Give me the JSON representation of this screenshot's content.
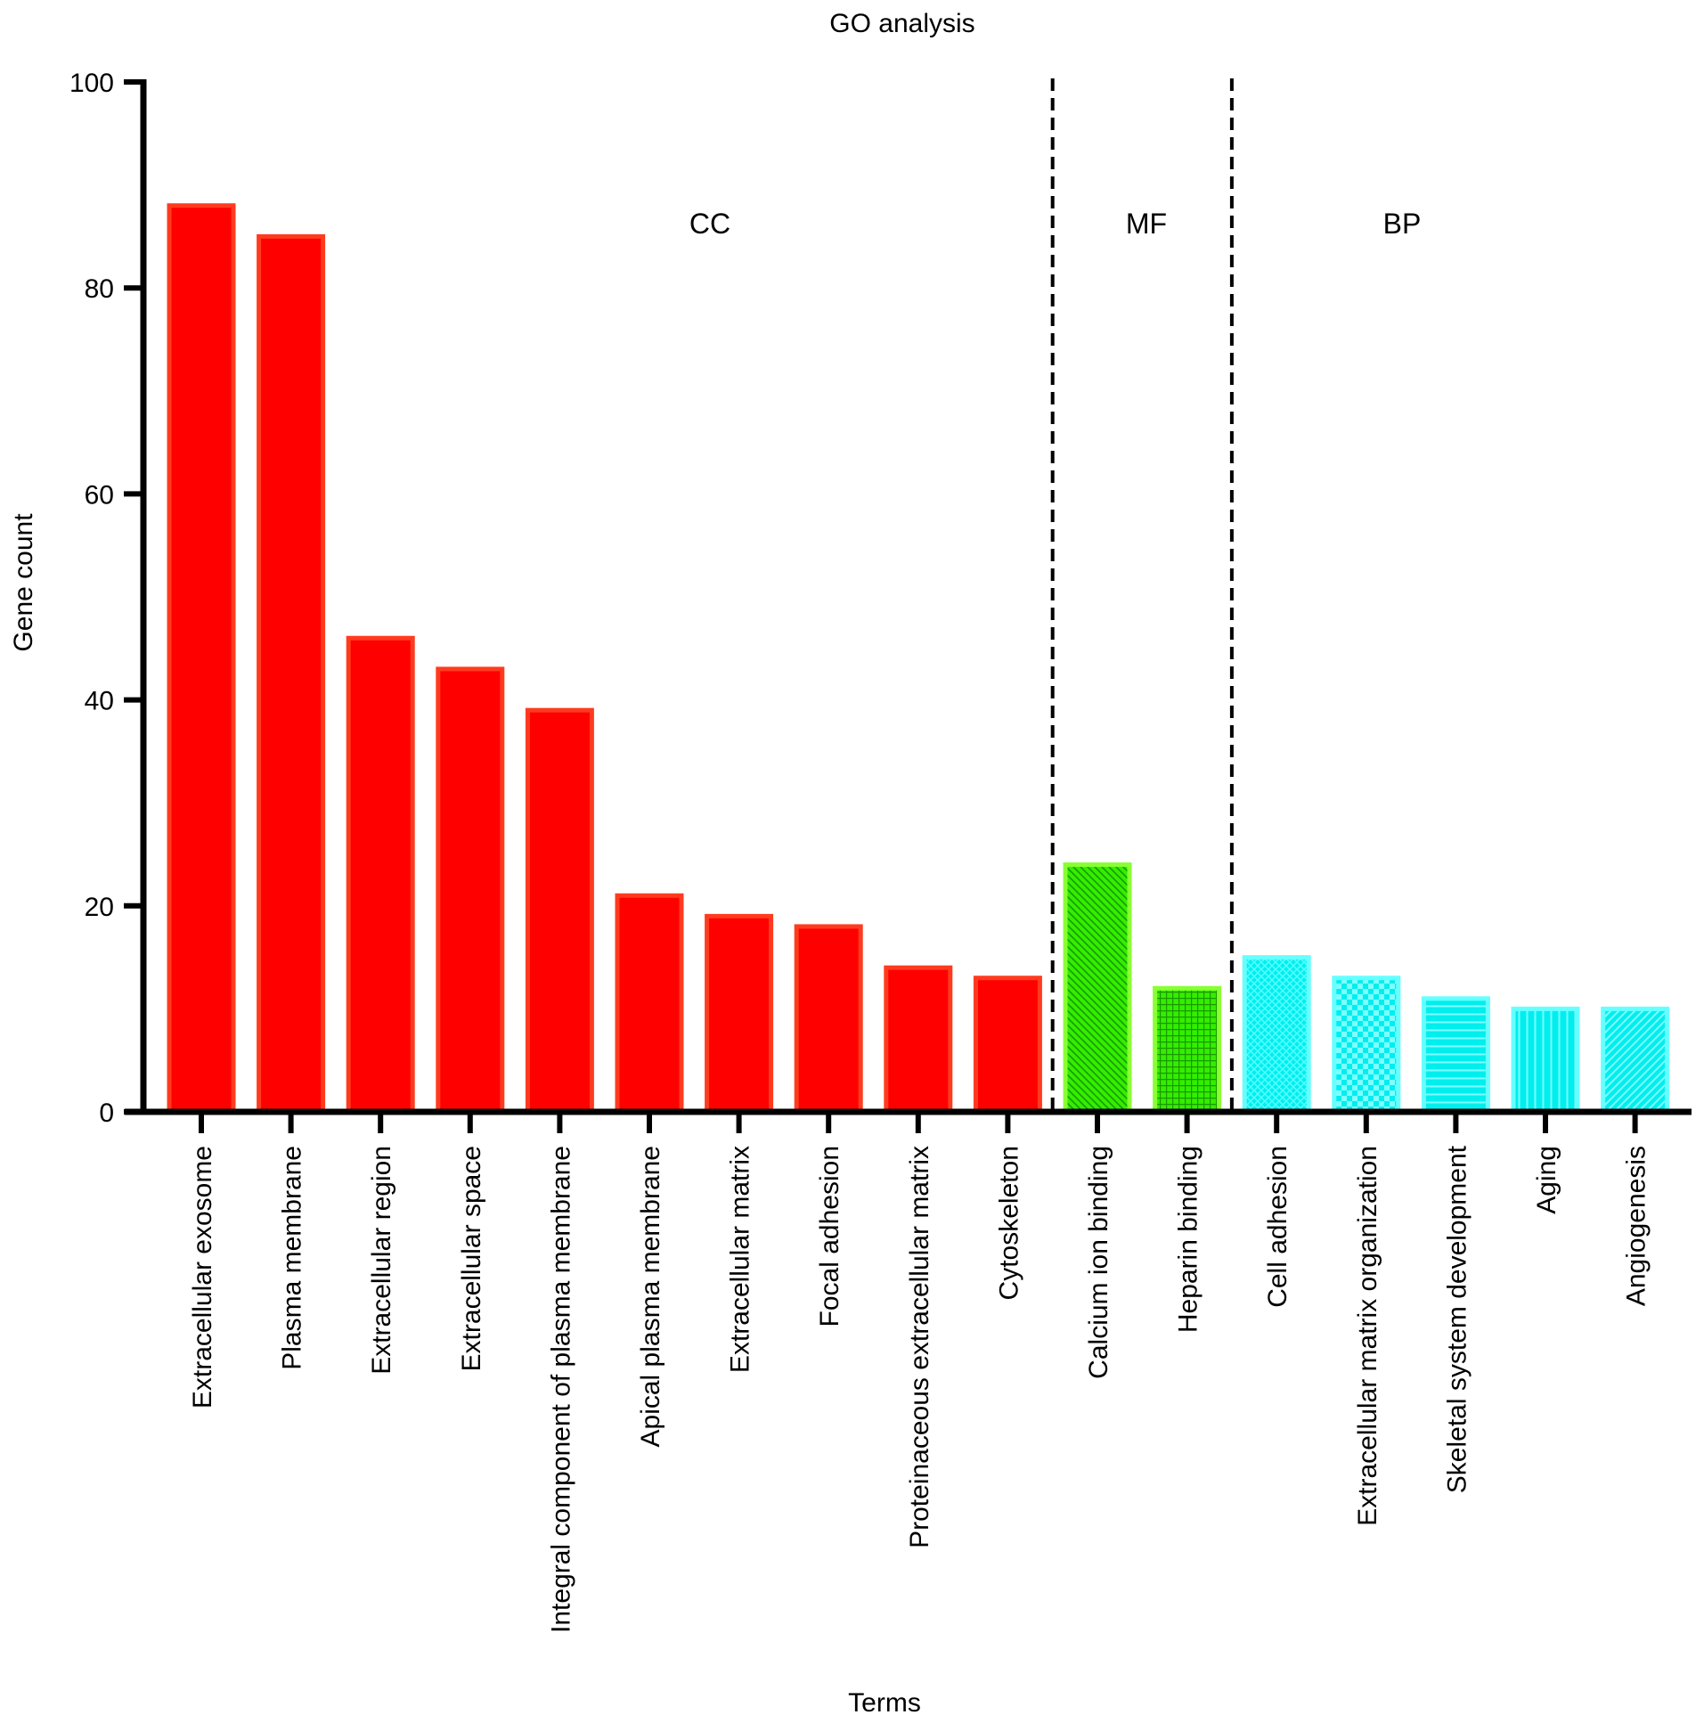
{
  "chart_data": {
    "type": "bar",
    "title": "GO analysis",
    "xlabel": "Terms",
    "ylabel": "Gene count",
    "ylim": [
      0,
      100
    ],
    "yticks": [
      0,
      20,
      40,
      60,
      80,
      100
    ],
    "grid": false,
    "categories": [
      "Extracellular exosome",
      "Plasma membrane",
      "Extracellular region",
      "Extracellular space",
      "Integral component of plasma membrane",
      "Apical plasma membrane",
      "Extracellular matrix",
      "Focal adhesion",
      "Proteinaceous extracellular matrix",
      "Cytoskeleton",
      "Calcium ion binding",
      "Heparin binding",
      "Cell adhesion",
      "Extracellular matrix organization",
      "Skeletal system development",
      "Aging",
      "Angiogenesis"
    ],
    "values": [
      88,
      85,
      46,
      43,
      39,
      21,
      19,
      18,
      14,
      13,
      24,
      12,
      15,
      13,
      11,
      10,
      10
    ],
    "groups": [
      {
        "label": "CC",
        "start": 0,
        "end": 9,
        "color": "#ff0000",
        "edge": "#ff3b1f"
      },
      {
        "label": "MF",
        "start": 10,
        "end": 11,
        "color": "#33ee00",
        "edge": "#88ff33"
      },
      {
        "label": "BP",
        "start": 12,
        "end": 16,
        "color": "#00eeee",
        "edge": "#66ffff"
      }
    ],
    "patterns": [
      "solid",
      "solid",
      "solid",
      "solid",
      "solid",
      "solid",
      "solid",
      "solid",
      "solid",
      "solid",
      "diag-back",
      "grid",
      "crosshatch",
      "checker",
      "horizontal",
      "vertical",
      "diag-fwd"
    ]
  }
}
